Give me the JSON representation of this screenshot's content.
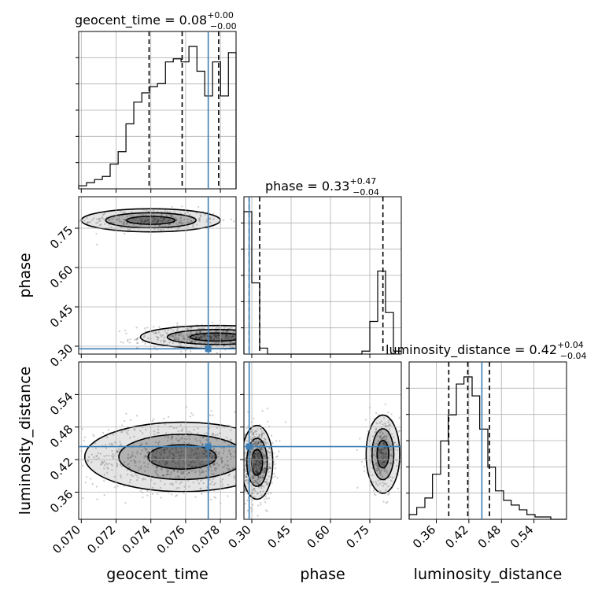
{
  "chart_data": {
    "type": "corner",
    "parameters": [
      "geocent_time",
      "phase",
      "luminosity_distance"
    ],
    "axis_labels": {
      "x": [
        "geocent_time",
        "phase",
        "luminosity_distance"
      ],
      "y": [
        "phase",
        "luminosity_distance"
      ]
    },
    "ranges": {
      "geocent_time": [
        0.06985,
        0.0789
      ],
      "phase": [
        0.27,
        0.87
      ],
      "luminosity_distance": [
        0.31,
        0.6
      ]
    },
    "ticks": {
      "geocent_time": [
        "0.070",
        "0.072",
        "0.074",
        "0.076",
        "0.078"
      ],
      "phase": [
        "0.30",
        "0.45",
        "0.60",
        "0.75"
      ],
      "luminosity_distance": [
        "0.36",
        "0.42",
        "0.48",
        "0.54"
      ]
    },
    "titles": [
      {
        "param": "geocent_time",
        "text": "geocent_time = 0.08",
        "sup": "+0.00",
        "sub": "−0.00"
      },
      {
        "param": "phase",
        "text": "phase = 0.33",
        "sup": "+0.47",
        "sub": "−0.04"
      },
      {
        "param": "luminosity_distance",
        "text": "luminosity_distance = 0.42",
        "sup": "+0.04",
        "sub": "−0.04"
      }
    ],
    "truths": {
      "geocent_time": 0.0773,
      "phase": 0.29,
      "luminosity_distance": 0.444
    },
    "quantiles": {
      "geocent_time": [
        0.0739,
        0.0758,
        0.0779
      ],
      "phase": [
        0.29,
        0.33,
        0.8
      ],
      "luminosity_distance": [
        0.383,
        0.418,
        0.458
      ]
    },
    "histograms": {
      "geocent_time": {
        "edges": [
          0.06985,
          0.0703,
          0.07076,
          0.07121,
          0.07166,
          0.07212,
          0.07257,
          0.07302,
          0.07348,
          0.07393,
          0.07438,
          0.07484,
          0.07529,
          0.07574,
          0.07619,
          0.07665,
          0.0771,
          0.07755,
          0.07801,
          0.07846,
          0.0789
        ],
        "counts": [
          1,
          2,
          3,
          4,
          8,
          12,
          21,
          28,
          31,
          33,
          34,
          41,
          42,
          41,
          46,
          38,
          30,
          41,
          30,
          44
        ]
      },
      "phase": {
        "edges": [
          0.27,
          0.3,
          0.33,
          0.36,
          0.39,
          0.42,
          0.45,
          0.48,
          0.51,
          0.54,
          0.57,
          0.6,
          0.63,
          0.66,
          0.69,
          0.72,
          0.75,
          0.78,
          0.81,
          0.84,
          0.87
        ],
        "counts": [
          48,
          24,
          2,
          0,
          0,
          0,
          0,
          0,
          0,
          0,
          0,
          0,
          0,
          0,
          0,
          1,
          11,
          28,
          14,
          1
        ]
      },
      "luminosity_distance": {
        "edges": [
          0.31,
          0.324,
          0.339,
          0.353,
          0.368,
          0.382,
          0.397,
          0.411,
          0.426,
          0.44,
          0.455,
          0.469,
          0.484,
          0.498,
          0.513,
          0.527,
          0.542,
          0.556,
          0.571,
          0.585,
          0.6
        ],
        "counts": [
          2,
          5,
          9,
          19,
          33,
          44,
          57,
          60,
          52,
          38,
          22,
          12,
          8,
          6,
          4,
          2,
          1,
          1,
          0,
          0
        ]
      }
    },
    "density_blobs": [
      {
        "pair": [
          "geocent_time",
          "phase"
        ],
        "modes": [
          {
            "x": 0.074,
            "y": 0.78,
            "sx": 0.002,
            "sy": 0.022,
            "weight": 0.35
          },
          {
            "x": 0.0778,
            "y": 0.335,
            "sx": 0.0022,
            "sy": 0.022,
            "weight": 0.65
          }
        ]
      },
      {
        "pair": [
          "geocent_time",
          "luminosity_distance"
        ],
        "modes": [
          {
            "x": 0.0758,
            "y": 0.425,
            "sx": 0.0028,
            "sy": 0.032,
            "weight": 1.0
          }
        ]
      },
      {
        "pair": [
          "phase",
          "luminosity_distance"
        ],
        "modes": [
          {
            "x": 0.32,
            "y": 0.415,
            "sx": 0.03,
            "sy": 0.034,
            "weight": 0.68
          },
          {
            "x": 0.8,
            "y": 0.43,
            "sx": 0.032,
            "sy": 0.036,
            "weight": 0.32
          }
        ]
      }
    ]
  }
}
